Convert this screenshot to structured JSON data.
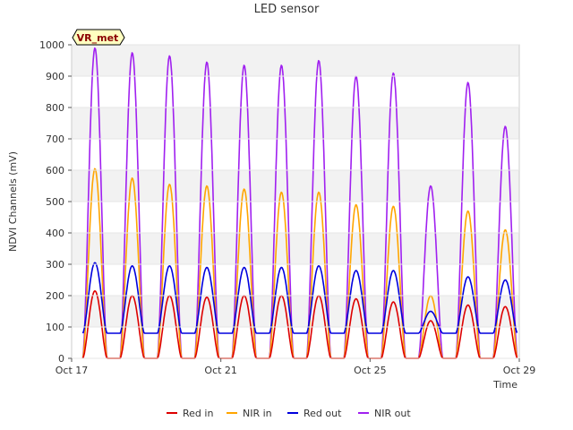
{
  "chart_data": {
    "type": "line",
    "title": "LED sensor",
    "xlabel": "Time",
    "ylabel": "NDVI Channels (mV)",
    "badge": "VR_met",
    "ylim": [
      0,
      1000
    ],
    "yticks": [
      0,
      100,
      200,
      300,
      400,
      500,
      600,
      700,
      800,
      900,
      1000
    ],
    "xlim_days": [
      0,
      12
    ],
    "xticks": [
      {
        "day": 0,
        "label": "Oct 17"
      },
      {
        "day": 4,
        "label": "Oct 21"
      },
      {
        "day": 8,
        "label": "Oct 25"
      },
      {
        "day": 12,
        "label": "Oct 29"
      }
    ],
    "background_bands": "alternating grey bands every 100 mV",
    "series": [
      {
        "name": "Red in",
        "color": "#dd0000",
        "baseline": 0,
        "daily_peaks": [
          215,
          200,
          200,
          195,
          200,
          200,
          200,
          190,
          180,
          120,
          170,
          165
        ]
      },
      {
        "name": "NIR in",
        "color": "#ffa500",
        "baseline": 0,
        "daily_peaks": [
          605,
          575,
          555,
          550,
          540,
          530,
          530,
          490,
          485,
          200,
          470,
          410
        ]
      },
      {
        "name": "Red out",
        "color": "#0000dd",
        "baseline": 80,
        "daily_peaks": [
          305,
          295,
          295,
          290,
          290,
          290,
          295,
          280,
          280,
          150,
          260,
          250
        ]
      },
      {
        "name": "NIR out",
        "color": "#a020f0",
        "baseline": 0,
        "daily_peaks": [
          990,
          975,
          965,
          945,
          935,
          935,
          950,
          900,
          910,
          550,
          880,
          740
        ]
      }
    ],
    "peak_day_offset": 0.8,
    "day_start": 0.3,
    "day_end": 1.3,
    "series_start_day": 0.3,
    "series_end_day": 11.95
  }
}
